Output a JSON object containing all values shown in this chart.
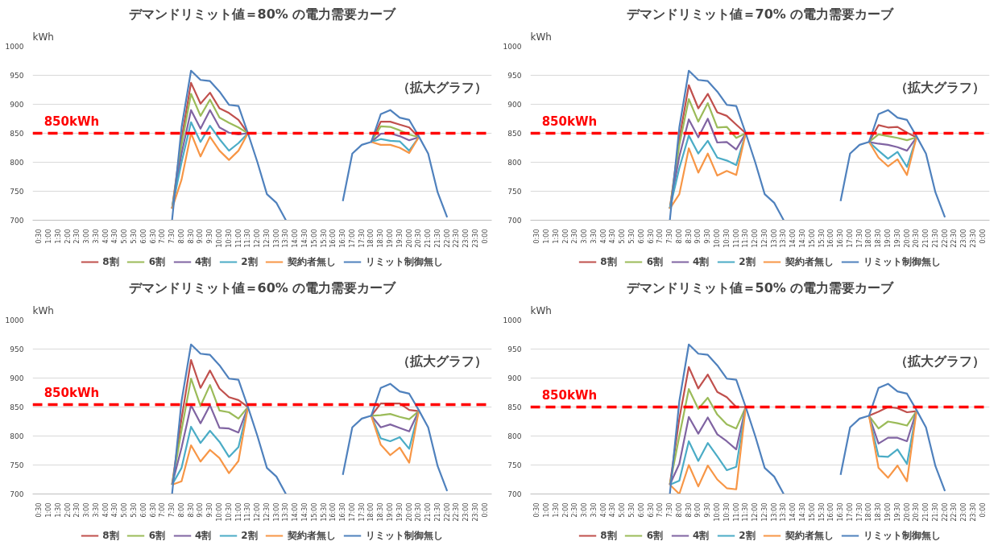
{
  "chart_data": [
    {
      "type": "line",
      "title": "デマンドリミット値＝80% の電力需要カーブ",
      "ylabel": "kWh",
      "categories": [
        "0:30",
        "1:00",
        "1:30",
        "2:00",
        "2:30",
        "3:00",
        "3:30",
        "4:00",
        "4:30",
        "5:00",
        "5:30",
        "6:00",
        "6:30",
        "7:00",
        "7:30",
        "8:00",
        "8:30",
        "9:00",
        "9:30",
        "10:00",
        "10:30",
        "11:00",
        "11:30",
        "12:00",
        "12:30",
        "13:00",
        "13:30",
        "14:00",
        "14:30",
        "15:00",
        "15:30",
        "16:00",
        "16:30",
        "17:00",
        "17:30",
        "18:00",
        "18:30",
        "19:00",
        "19:30",
        "20:00",
        "20:30",
        "21:00",
        "21:30",
        "22:00",
        "22:30",
        "23:00",
        "23:30",
        "0:00"
      ],
      "series": [
        {
          "name": "8割",
          "color": "#c0504d",
          "values": [
            null,
            null,
            null,
            null,
            null,
            null,
            null,
            null,
            null,
            null,
            null,
            null,
            null,
            null,
            720,
            840,
            937,
            901,
            920,
            893,
            885,
            873,
            850,
            null,
            null,
            null,
            null,
            null,
            null,
            null,
            null,
            null,
            null,
            null,
            null,
            835,
            870,
            870,
            865,
            860,
            843,
            null,
            null,
            null,
            null,
            null,
            null,
            null
          ]
        },
        {
          "name": "6割",
          "color": "#9bbb59",
          "values": [
            null,
            null,
            null,
            null,
            null,
            null,
            null,
            null,
            null,
            null,
            null,
            null,
            null,
            null,
            720,
            830,
            918,
            880,
            908,
            877,
            868,
            860,
            850,
            null,
            null,
            null,
            null,
            null,
            null,
            null,
            null,
            null,
            null,
            null,
            null,
            835,
            862,
            861,
            855,
            848,
            843,
            null,
            null,
            null,
            null,
            null,
            null,
            null
          ]
        },
        {
          "name": "4割",
          "color": "#8064a2",
          "values": [
            null,
            null,
            null,
            null,
            null,
            null,
            null,
            null,
            null,
            null,
            null,
            null,
            null,
            null,
            720,
            815,
            890,
            858,
            890,
            860,
            851,
            848,
            850,
            null,
            null,
            null,
            null,
            null,
            null,
            null,
            null,
            null,
            null,
            null,
            null,
            835,
            849,
            850,
            845,
            838,
            843,
            null,
            null,
            null,
            null,
            null,
            null,
            null
          ]
        },
        {
          "name": "2割",
          "color": "#4bacc6",
          "values": [
            null,
            null,
            null,
            null,
            null,
            null,
            null,
            null,
            null,
            null,
            null,
            null,
            null,
            null,
            720,
            800,
            869,
            835,
            863,
            840,
            820,
            833,
            850,
            null,
            null,
            null,
            null,
            null,
            null,
            null,
            null,
            null,
            null,
            null,
            null,
            835,
            840,
            837,
            836,
            820,
            843,
            null,
            null,
            null,
            null,
            null,
            null,
            null
          ]
        },
        {
          "name": "契約者無し",
          "color": "#f79646",
          "values": [
            null,
            null,
            null,
            null,
            null,
            null,
            null,
            null,
            null,
            null,
            null,
            null,
            null,
            null,
            720,
            770,
            850,
            810,
            844,
            820,
            804,
            820,
            850,
            null,
            null,
            null,
            null,
            null,
            null,
            null,
            null,
            null,
            null,
            null,
            null,
            835,
            830,
            830,
            825,
            816,
            843,
            null,
            null,
            null,
            null,
            null,
            null,
            null
          ]
        },
        {
          "name": "リミット制御無し",
          "color": "#4f81bd",
          "values": [
            null,
            null,
            null,
            null,
            null,
            null,
            null,
            null,
            null,
            null,
            null,
            null,
            null,
            null,
            700,
            860,
            958,
            942,
            940,
            922,
            899,
            897,
            850,
            800,
            745,
            730,
            700,
            null,
            null,
            null,
            null,
            null,
            733,
            815,
            830,
            835,
            883,
            890,
            877,
            873,
            845,
            815,
            748,
            705,
            null,
            null,
            null,
            null
          ]
        }
      ],
      "ylim": [
        700,
        1000
      ],
      "yticks": [
        700,
        750,
        800,
        850,
        900,
        950,
        1000
      ],
      "grid": "y",
      "legend": "bottom",
      "ref_lines": [
        {
          "axis": "y",
          "value": 850,
          "label": "850kWh",
          "color": "#ff0000",
          "line_style": "dashed"
        }
      ],
      "annotations": [
        "（拡大グラフ）"
      ]
    },
    {
      "type": "line",
      "title": "デマンドリミット値＝70% の電力需要カーブ",
      "ylabel": "kWh",
      "categories": [
        "0:30",
        "1:00",
        "1:30",
        "2:00",
        "2:30",
        "3:00",
        "3:30",
        "4:00",
        "4:30",
        "5:00",
        "5:30",
        "6:00",
        "6:30",
        "7:00",
        "7:30",
        "8:00",
        "8:30",
        "9:00",
        "9:30",
        "10:00",
        "10:30",
        "11:00",
        "11:30",
        "12:00",
        "12:30",
        "13:00",
        "13:30",
        "14:00",
        "14:30",
        "15:00",
        "15:30",
        "16:00",
        "16:30",
        "17:00",
        "17:30",
        "18:00",
        "18:30",
        "19:00",
        "19:30",
        "20:00",
        "20:30",
        "21:00",
        "21:30",
        "22:00",
        "22:30",
        "23:00",
        "23:30",
        "0:00"
      ],
      "series": [
        {
          "name": "8割",
          "color": "#c0504d",
          "values": [
            null,
            null,
            null,
            null,
            null,
            null,
            null,
            null,
            null,
            null,
            null,
            null,
            null,
            null,
            720,
            840,
            933,
            893,
            918,
            886,
            880,
            865,
            850,
            null,
            null,
            null,
            null,
            null,
            null,
            null,
            null,
            null,
            null,
            null,
            null,
            835,
            864,
            860,
            861,
            851,
            843,
            null,
            null,
            null,
            null,
            null,
            null,
            null
          ]
        },
        {
          "name": "6割",
          "color": "#9bbb59",
          "values": [
            null,
            null,
            null,
            null,
            null,
            null,
            null,
            null,
            null,
            null,
            null,
            null,
            null,
            null,
            720,
            830,
            909,
            870,
            902,
            860,
            861,
            842,
            850,
            null,
            null,
            null,
            null,
            null,
            null,
            null,
            null,
            null,
            null,
            null,
            null,
            835,
            848,
            845,
            842,
            838,
            843,
            null,
            null,
            null,
            null,
            null,
            null,
            null
          ]
        },
        {
          "name": "4割",
          "color": "#8064a2",
          "values": [
            null,
            null,
            null,
            null,
            null,
            null,
            null,
            null,
            null,
            null,
            null,
            null,
            null,
            null,
            720,
            810,
            874,
            843,
            875,
            834,
            835,
            822,
            850,
            null,
            null,
            null,
            null,
            null,
            null,
            null,
            null,
            null,
            null,
            null,
            null,
            835,
            832,
            830,
            826,
            820,
            843,
            null,
            null,
            null,
            null,
            null,
            null,
            null
          ]
        },
        {
          "name": "2割",
          "color": "#4bacc6",
          "values": [
            null,
            null,
            null,
            null,
            null,
            null,
            null,
            null,
            null,
            null,
            null,
            null,
            null,
            null,
            720,
            790,
            846,
            815,
            837,
            808,
            803,
            795,
            850,
            null,
            null,
            null,
            null,
            null,
            null,
            null,
            null,
            null,
            null,
            null,
            null,
            835,
            820,
            806,
            818,
            792,
            843,
            null,
            null,
            null,
            null,
            null,
            null,
            null
          ]
        },
        {
          "name": "契約者無し",
          "color": "#f79646",
          "values": [
            null,
            null,
            null,
            null,
            null,
            null,
            null,
            null,
            null,
            null,
            null,
            null,
            null,
            null,
            720,
            745,
            824,
            782,
            815,
            777,
            785,
            778,
            850,
            null,
            null,
            null,
            null,
            null,
            null,
            null,
            null,
            null,
            null,
            null,
            null,
            835,
            808,
            793,
            805,
            778,
            843,
            null,
            null,
            null,
            null,
            null,
            null,
            null
          ]
        },
        {
          "name": "リミット制御無し",
          "color": "#4f81bd",
          "values": [
            null,
            null,
            null,
            null,
            null,
            null,
            null,
            null,
            null,
            null,
            null,
            null,
            null,
            null,
            700,
            860,
            958,
            942,
            940,
            922,
            899,
            897,
            850,
            800,
            745,
            730,
            700,
            null,
            null,
            null,
            null,
            null,
            733,
            815,
            830,
            835,
            883,
            890,
            877,
            873,
            845,
            815,
            748,
            705,
            null,
            null,
            null,
            null
          ]
        }
      ],
      "ylim": [
        700,
        1000
      ],
      "yticks": [
        700,
        750,
        800,
        850,
        900,
        950,
        1000
      ],
      "grid": "y",
      "legend": "bottom",
      "ref_lines": [
        {
          "axis": "y",
          "value": 850,
          "label": "850kWh",
          "color": "#ff0000",
          "line_style": "dashed"
        }
      ],
      "annotations": [
        "（拡大グラフ）"
      ]
    },
    {
      "type": "line",
      "title": "デマンドリミット値＝60% の電力需要カーブ",
      "ylabel": "kWh",
      "categories": [
        "0:30",
        "1:00",
        "1:30",
        "2:00",
        "2:30",
        "3:00",
        "3:30",
        "4:00",
        "4:30",
        "5:00",
        "5:30",
        "6:00",
        "6:30",
        "7:00",
        "7:30",
        "8:00",
        "8:30",
        "9:00",
        "9:30",
        "10:00",
        "10:30",
        "11:00",
        "11:30",
        "12:00",
        "12:30",
        "13:00",
        "13:30",
        "14:00",
        "14:30",
        "15:00",
        "15:30",
        "16:00",
        "16:30",
        "17:00",
        "17:30",
        "18:00",
        "18:30",
        "19:00",
        "19:30",
        "20:00",
        "20:30",
        "21:00",
        "21:30",
        "22:00",
        "22:30",
        "23:00",
        "23:30",
        "0:00"
      ],
      "series": [
        {
          "name": "8割",
          "color": "#c0504d",
          "values": [
            null,
            null,
            null,
            null,
            null,
            null,
            null,
            null,
            null,
            null,
            null,
            null,
            null,
            null,
            716,
            830,
            931,
            883,
            913,
            882,
            867,
            862,
            850,
            null,
            null,
            null,
            null,
            null,
            null,
            null,
            null,
            null,
            null,
            null,
            null,
            835,
            856,
            856,
            856,
            845,
            843,
            null,
            null,
            null,
            null,
            null,
            null,
            null
          ]
        },
        {
          "name": "6割",
          "color": "#9bbb59",
          "values": [
            null,
            null,
            null,
            null,
            null,
            null,
            null,
            null,
            null,
            null,
            null,
            null,
            null,
            null,
            716,
            810,
            899,
            852,
            888,
            844,
            841,
            830,
            850,
            null,
            null,
            null,
            null,
            null,
            null,
            null,
            null,
            null,
            null,
            null,
            null,
            835,
            836,
            838,
            833,
            829,
            843,
            null,
            null,
            null,
            null,
            null,
            null,
            null
          ]
        },
        {
          "name": "4割",
          "color": "#8064a2",
          "values": [
            null,
            null,
            null,
            null,
            null,
            null,
            null,
            null,
            null,
            null,
            null,
            null,
            null,
            null,
            716,
            780,
            853,
            822,
            853,
            814,
            813,
            806,
            850,
            null,
            null,
            null,
            null,
            null,
            null,
            null,
            null,
            null,
            null,
            null,
            null,
            835,
            815,
            820,
            814,
            808,
            843,
            null,
            null,
            null,
            null,
            null,
            null,
            null
          ]
        },
        {
          "name": "2割",
          "color": "#4bacc6",
          "values": [
            null,
            null,
            null,
            null,
            null,
            null,
            null,
            null,
            null,
            null,
            null,
            null,
            null,
            null,
            716,
            745,
            816,
            788,
            809,
            790,
            764,
            781,
            850,
            null,
            null,
            null,
            null,
            null,
            null,
            null,
            null,
            null,
            null,
            null,
            null,
            835,
            796,
            791,
            798,
            778,
            843,
            null,
            null,
            null,
            null,
            null,
            null,
            null
          ]
        },
        {
          "name": "契約者無し",
          "color": "#f79646",
          "values": [
            null,
            null,
            null,
            null,
            null,
            null,
            null,
            null,
            null,
            null,
            null,
            null,
            null,
            null,
            716,
            722,
            784,
            756,
            776,
            762,
            736,
            757,
            850,
            null,
            null,
            null,
            null,
            null,
            null,
            null,
            null,
            null,
            null,
            null,
            null,
            835,
            785,
            767,
            780,
            754,
            843,
            null,
            null,
            null,
            null,
            null,
            null,
            null
          ]
        },
        {
          "name": "リミット制御無し",
          "color": "#4f81bd",
          "values": [
            null,
            null,
            null,
            null,
            null,
            null,
            null,
            null,
            null,
            null,
            null,
            null,
            null,
            null,
            700,
            860,
            958,
            942,
            940,
            922,
            899,
            897,
            850,
            800,
            745,
            730,
            700,
            null,
            null,
            null,
            null,
            null,
            733,
            815,
            830,
            835,
            883,
            890,
            877,
            873,
            845,
            815,
            748,
            705,
            null,
            null,
            null,
            null
          ]
        }
      ],
      "ylim": [
        700,
        1000
      ],
      "yticks": [
        700,
        750,
        800,
        850,
        900,
        950,
        1000
      ],
      "grid": "y",
      "legend": "bottom",
      "ref_lines": [
        {
          "axis": "y",
          "value": 854,
          "label": "850kWh",
          "color": "#ff0000",
          "line_style": "dashed"
        }
      ],
      "annotations": [
        "（拡大グラフ）"
      ]
    },
    {
      "type": "line",
      "title": "デマンドリミット値＝50% の電力需要カーブ",
      "ylabel": "kWh",
      "categories": [
        "0:30",
        "1:00",
        "1:30",
        "2:00",
        "2:30",
        "3:00",
        "3:30",
        "4:00",
        "4:30",
        "5:00",
        "5:30",
        "6:00",
        "6:30",
        "7:00",
        "7:30",
        "8:00",
        "8:30",
        "9:00",
        "9:30",
        "10:00",
        "10:30",
        "11:00",
        "11:30",
        "12:00",
        "12:30",
        "13:00",
        "13:30",
        "14:00",
        "14:30",
        "15:00",
        "15:30",
        "16:00",
        "16:30",
        "17:00",
        "17:30",
        "18:00",
        "18:30",
        "19:00",
        "19:30",
        "20:00",
        "20:30",
        "21:00",
        "21:30",
        "22:00",
        "22:30",
        "23:00",
        "23:30",
        "0:00"
      ],
      "series": [
        {
          "name": "8割",
          "color": "#c0504d",
          "values": [
            null,
            null,
            null,
            null,
            null,
            null,
            null,
            null,
            null,
            null,
            null,
            null,
            null,
            null,
            716,
            830,
            919,
            882,
            906,
            876,
            867,
            850,
            850,
            null,
            null,
            null,
            null,
            null,
            null,
            null,
            null,
            null,
            null,
            null,
            null,
            835,
            842,
            850,
            848,
            841,
            843,
            null,
            null,
            null,
            null,
            null,
            null,
            null
          ]
        },
        {
          "name": "6割",
          "color": "#9bbb59",
          "values": [
            null,
            null,
            null,
            null,
            null,
            null,
            null,
            null,
            null,
            null,
            null,
            null,
            null,
            null,
            716,
            800,
            881,
            847,
            866,
            837,
            820,
            813,
            850,
            null,
            null,
            null,
            null,
            null,
            null,
            null,
            null,
            null,
            null,
            null,
            null,
            835,
            813,
            825,
            822,
            818,
            843,
            null,
            null,
            null,
            null,
            null,
            null,
            null
          ]
        },
        {
          "name": "4割",
          "color": "#8064a2",
          "values": [
            null,
            null,
            null,
            null,
            null,
            null,
            null,
            null,
            null,
            null,
            null,
            null,
            null,
            null,
            716,
            752,
            833,
            804,
            832,
            803,
            791,
            777,
            850,
            null,
            null,
            null,
            null,
            null,
            null,
            null,
            null,
            null,
            null,
            null,
            null,
            835,
            787,
            797,
            797,
            791,
            843,
            null,
            null,
            null,
            null,
            null,
            null,
            null
          ]
        },
        {
          "name": "2割",
          "color": "#4bacc6",
          "values": [
            null,
            null,
            null,
            null,
            null,
            null,
            null,
            null,
            null,
            null,
            null,
            null,
            null,
            null,
            716,
            723,
            791,
            757,
            788,
            765,
            741,
            747,
            850,
            null,
            null,
            null,
            null,
            null,
            null,
            null,
            null,
            null,
            null,
            null,
            null,
            835,
            765,
            764,
            777,
            752,
            843,
            null,
            null,
            null,
            null,
            null,
            null,
            null
          ]
        },
        {
          "name": "契約者無し",
          "color": "#f79646",
          "values": [
            null,
            null,
            null,
            null,
            null,
            null,
            null,
            null,
            null,
            null,
            null,
            null,
            null,
            null,
            716,
            700,
            750,
            713,
            749,
            725,
            710,
            708,
            850,
            null,
            null,
            null,
            null,
            null,
            null,
            null,
            null,
            null,
            null,
            null,
            null,
            835,
            745,
            728,
            749,
            722,
            843,
            null,
            null,
            null,
            null,
            null,
            null,
            null
          ]
        },
        {
          "name": "リミット制御無し",
          "color": "#4f81bd",
          "values": [
            null,
            null,
            null,
            null,
            null,
            null,
            null,
            null,
            null,
            null,
            null,
            null,
            null,
            null,
            700,
            860,
            958,
            942,
            940,
            922,
            899,
            897,
            850,
            800,
            745,
            730,
            700,
            null,
            null,
            null,
            null,
            null,
            733,
            815,
            830,
            835,
            883,
            890,
            877,
            873,
            845,
            815,
            748,
            705,
            null,
            null,
            null,
            null
          ]
        }
      ],
      "ylim": [
        700,
        1000
      ],
      "yticks": [
        700,
        750,
        800,
        850,
        900,
        950,
        1000
      ],
      "grid": "y",
      "legend": "bottom",
      "ref_lines": [
        {
          "axis": "y",
          "value": 850,
          "label": "850kWh",
          "color": "#ff0000",
          "line_style": "dashed"
        }
      ],
      "annotations": [
        "（拡大グラフ）"
      ]
    }
  ]
}
